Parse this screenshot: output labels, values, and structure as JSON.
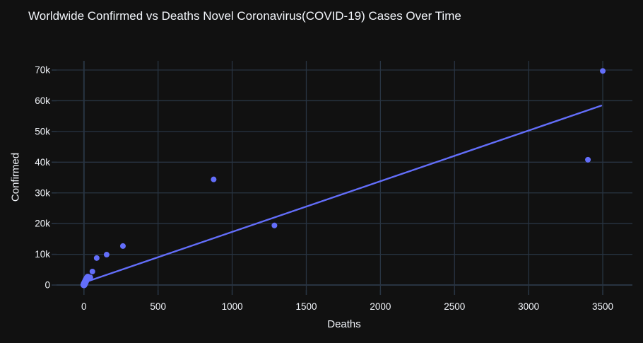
{
  "header": {
    "title": "Worldwide Confirmed vs Deaths Novel Coronavirus(COVID-19) Cases Over Time"
  },
  "colors": {
    "background": "#111111",
    "plot_background": "#111111",
    "grid": "#283442",
    "zeroline": "#283442",
    "accent": "#636efa",
    "text": "#f2f5fa"
  },
  "chart_data": {
    "type": "scatter",
    "title": "Worldwide Confirmed vs Deaths Novel Coronavirus(COVID-19) Cases Over Time",
    "xlabel": "Deaths",
    "ylabel": "Confirmed",
    "xlim": [
      -185,
      3700
    ],
    "ylim": [
      -1600,
      73000
    ],
    "grid": true,
    "legend_position": "none",
    "marker_color": "#636efa",
    "trendline_color": "#636efa",
    "x_ticks": [
      {
        "value": 0,
        "label": "0"
      },
      {
        "value": 500,
        "label": "500"
      },
      {
        "value": 1000,
        "label": "1000"
      },
      {
        "value": 1500,
        "label": "1500"
      },
      {
        "value": 2000,
        "label": "2000"
      },
      {
        "value": 2500,
        "label": "2500"
      },
      {
        "value": 3000,
        "label": "3000"
      },
      {
        "value": 3500,
        "label": "3500"
      }
    ],
    "y_ticks": [
      {
        "value": 0,
        "label": "0"
      },
      {
        "value": 10000,
        "label": "10k"
      },
      {
        "value": 20000,
        "label": "20k"
      },
      {
        "value": 30000,
        "label": "30k"
      },
      {
        "value": 40000,
        "label": "40k"
      },
      {
        "value": 50000,
        "label": "50k"
      },
      {
        "value": 60000,
        "label": "60k"
      },
      {
        "value": 70000,
        "label": "70k"
      }
    ],
    "series": [
      {
        "name": "Confirmed vs Deaths",
        "origin_cluster_points": [
          [
            0,
            100
          ],
          [
            2,
            350
          ],
          [
            5,
            600
          ],
          [
            8,
            950
          ],
          [
            12,
            1350
          ],
          [
            16,
            1750
          ],
          [
            21,
            2150
          ],
          [
            26,
            2550
          ]
        ],
        "points": [
          [
            43,
            2500
          ],
          [
            57,
            4400
          ],
          [
            86,
            8800
          ],
          [
            153,
            9900
          ],
          [
            263,
            12700
          ],
          [
            875,
            34400
          ],
          [
            1285,
            19400
          ],
          [
            3400,
            40800
          ],
          [
            3500,
            69700
          ]
        ]
      }
    ],
    "trendline": {
      "x1": 0,
      "y1": 800,
      "x2": 3490,
      "y2": 58400
    }
  }
}
